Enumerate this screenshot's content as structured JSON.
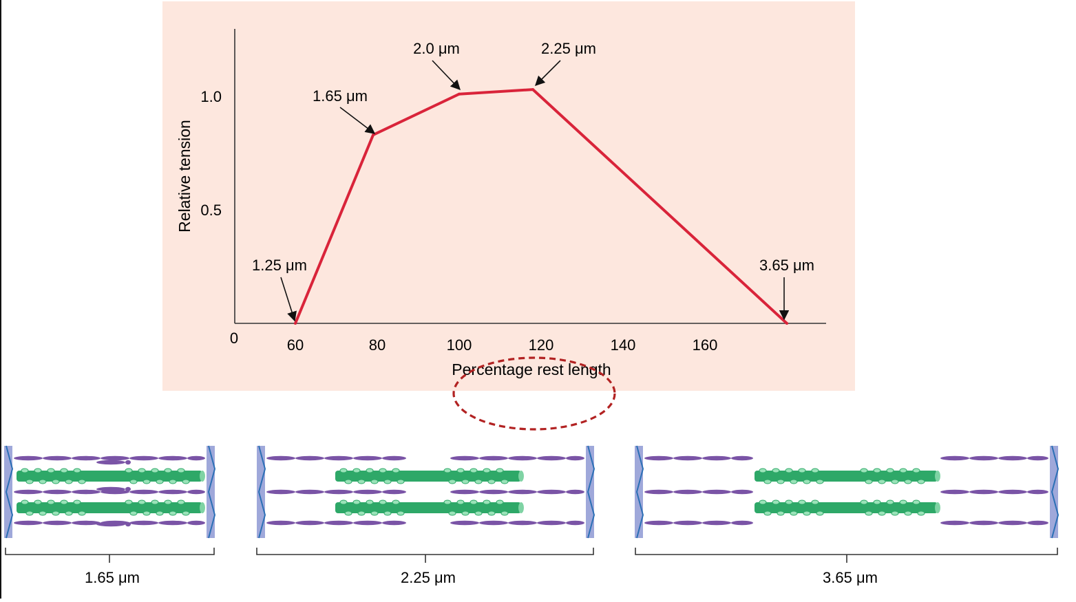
{
  "colors": {
    "panel_bg": "#fde7de",
    "curve": "#d9243a",
    "axis": "#333333",
    "actin": "#7a54a6",
    "myosin": "#2ea868",
    "z_disc": "#9fa8da",
    "z_line": "#2b6fb5",
    "highlight_ellipse": "#b22222"
  },
  "chart_data": {
    "type": "line",
    "title": "",
    "xlabel": "Percentage rest length",
    "ylabel": "Relative tension",
    "xlim": [
      45,
      195
    ],
    "ylim": [
      0,
      1.3
    ],
    "x_origin_label": "0",
    "x_ticks": [
      60,
      80,
      100,
      120,
      140,
      160
    ],
    "x_tick_labels": [
      "60",
      "80",
      "100",
      "120",
      "140",
      "160"
    ],
    "y_ticks": [
      0.5,
      1.0
    ],
    "y_tick_labels": [
      "0.5",
      "1.0"
    ],
    "series": [
      {
        "points": [
          {
            "x": 60,
            "y": 0
          },
          {
            "x": 79,
            "y": 0.83
          },
          {
            "x": 100,
            "y": 1.01
          },
          {
            "x": 118,
            "y": 1.03
          },
          {
            "x": 180,
            "y": 0
          }
        ]
      }
    ],
    "annotations": [
      {
        "text": "1.25 μm",
        "x": 60,
        "y": 0
      },
      {
        "text": "1.65 μm",
        "x": 79,
        "y": 0.83
      },
      {
        "text": "2.0 μm",
        "x": 100,
        "y": 1.01
      },
      {
        "text": "2.25 μm",
        "x": 118,
        "y": 1.03
      },
      {
        "text": "3.65 μm",
        "x": 180,
        "y": 0
      }
    ]
  },
  "sarcomeres": [
    {
      "label": "1.65 μm",
      "overlap": "double overlap"
    },
    {
      "label": "2.25 μm",
      "overlap": "optimal overlap"
    },
    {
      "label": "3.65 μm",
      "overlap": "no overlap"
    }
  ]
}
